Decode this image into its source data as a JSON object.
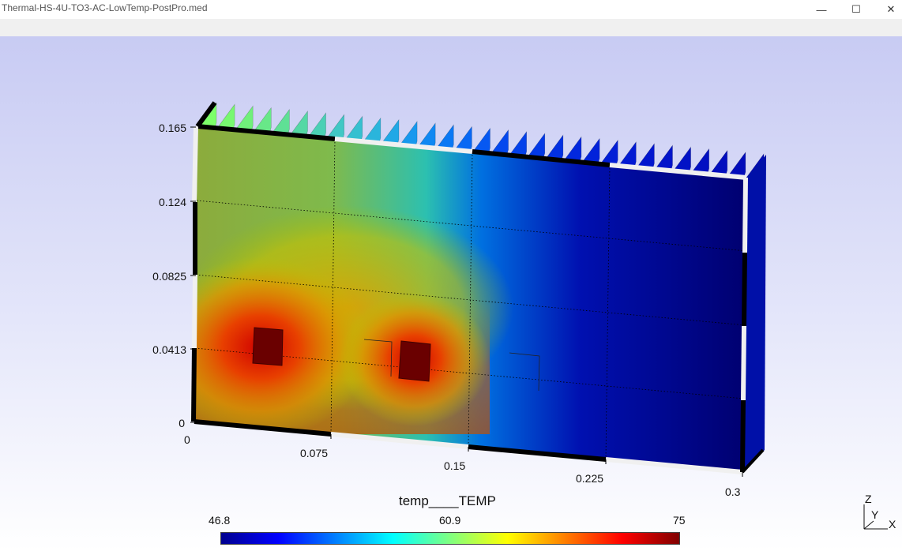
{
  "window": {
    "title": "Thermal-HS-4U-TO3-AC-LowTemp-PostPro.med",
    "controls": [
      "minimize-icon",
      "maximize-icon",
      "close-icon"
    ]
  },
  "plot": {
    "y_ticks": [
      "0.165",
      "0.124",
      "0.0825",
      "0.0413",
      "0"
    ],
    "x_ticks": [
      "0",
      "0.075",
      "0.15",
      "0.225",
      "0.3"
    ],
    "field_name": "temp____TEMP",
    "colorbar": {
      "min": "46.8",
      "mid": "60.9",
      "max": "75"
    },
    "orientation_axes": {
      "z": "Z",
      "y": "Y",
      "x": "X"
    },
    "colors": {
      "hot": "#800000",
      "cold": "#00008f",
      "background_top": "#c8cbf3",
      "background_bottom": "#ffffff"
    }
  }
}
